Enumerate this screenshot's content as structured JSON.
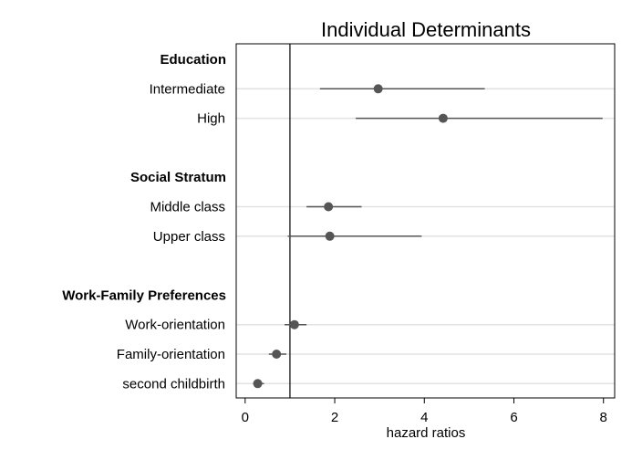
{
  "chart_data": {
    "type": "scatter",
    "title": "Individual Determinants",
    "xlabel": "hazard ratios",
    "xlim": [
      -0.2,
      8.25
    ],
    "xticks": [
      0,
      2,
      4,
      6,
      8
    ],
    "reference_line": 1,
    "grid": "horizontal",
    "colors": {
      "marker": "#555555",
      "ci": "#555555",
      "grid": "#e2e2e2",
      "frame": "#000000"
    },
    "rows": [
      {
        "label": "Education",
        "header": true
      },
      {
        "label": "Intermediate",
        "value": 2.97,
        "ci_low": 1.67,
        "ci_high": 5.35
      },
      {
        "label": "High",
        "value": 4.42,
        "ci_low": 2.47,
        "ci_high": 7.98
      },
      {
        "label": "",
        "spacer": true
      },
      {
        "label": "Social Stratum",
        "header": true
      },
      {
        "label": "Middle class",
        "value": 1.86,
        "ci_low": 1.37,
        "ci_high": 2.6
      },
      {
        "label": "Upper class",
        "value": 1.89,
        "ci_low": 0.95,
        "ci_high": 3.94
      },
      {
        "label": "",
        "spacer": true
      },
      {
        "label": "Work-Family Preferences",
        "header": true
      },
      {
        "label": "Work-orientation",
        "value": 1.1,
        "ci_low": 0.88,
        "ci_high": 1.37
      },
      {
        "label": "Family-orientation",
        "value": 0.7,
        "ci_low": 0.53,
        "ci_high": 0.92
      },
      {
        "label": "second childbirth",
        "value": 0.28,
        "ci_low": 0.18,
        "ci_high": 0.42
      }
    ]
  }
}
